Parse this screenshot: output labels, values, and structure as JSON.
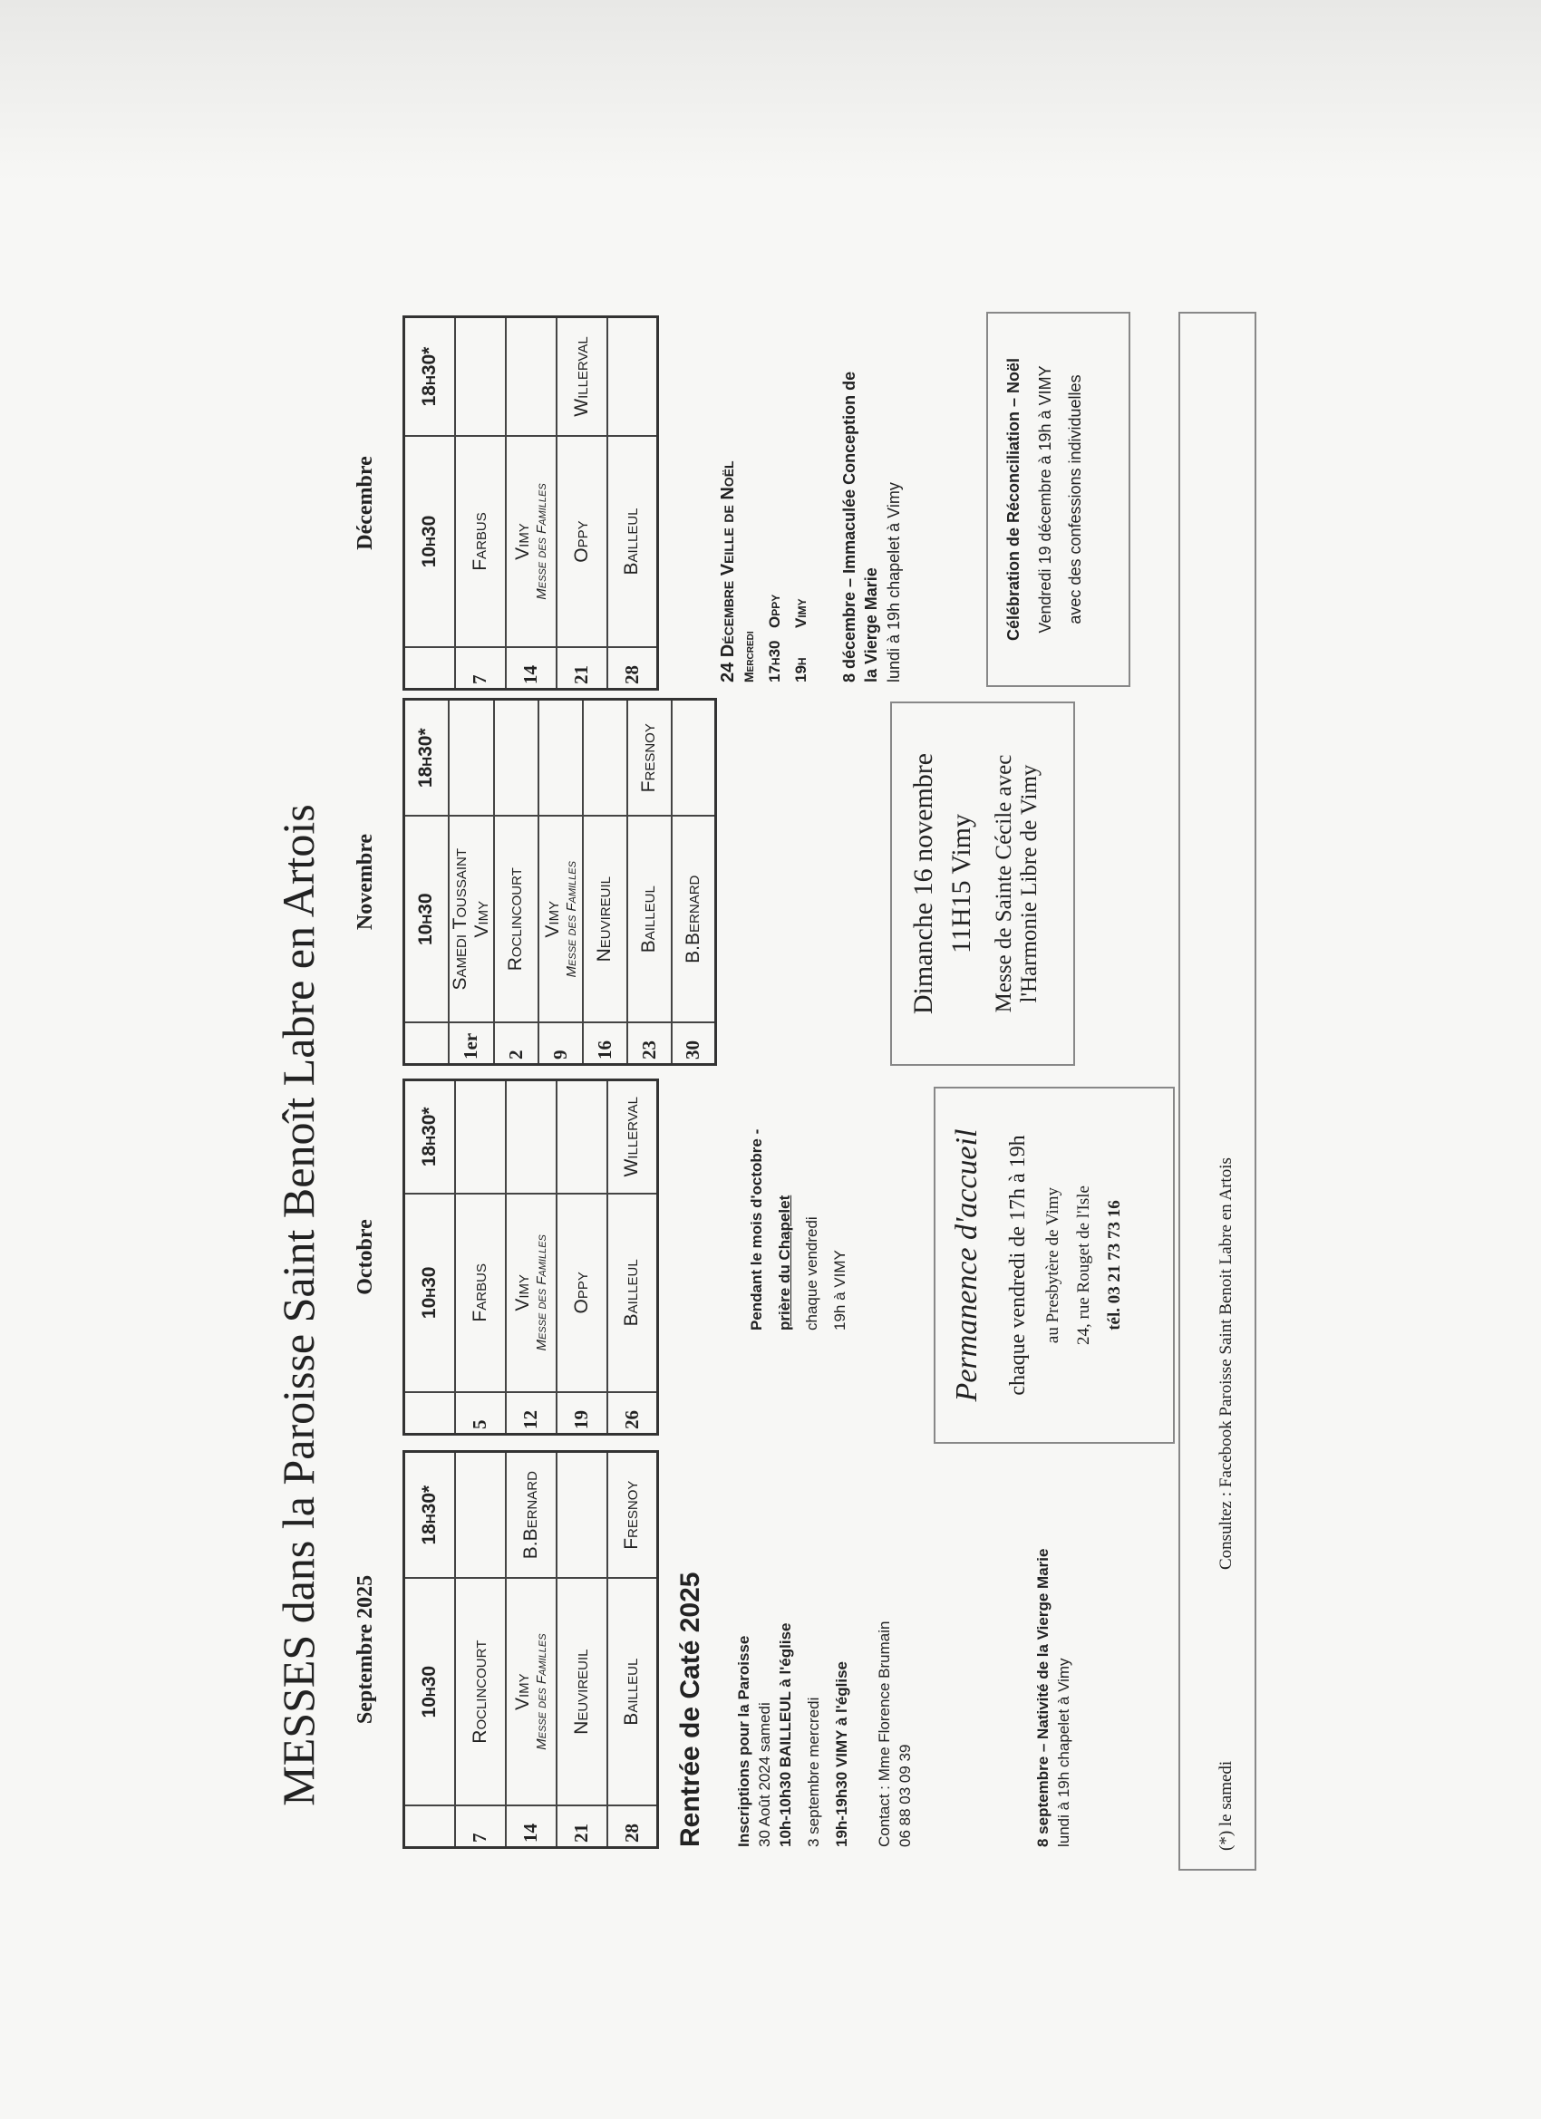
{
  "title": "MESSES dans la Paroisse Saint Benoît Labre en Artois",
  "months": [
    {
      "label": "Septembre  2025",
      "headers": [
        "",
        "10h30",
        "18h30*"
      ],
      "rows": [
        {
          "day": "7",
          "c1": "Roclincourt",
          "c1_sub": "",
          "c2": ""
        },
        {
          "day": "14",
          "c1": "Vimy",
          "c1_sub": "Messe des Familles",
          "c2": "B.Bernard"
        },
        {
          "day": "21",
          "c1": "Neuvireuil",
          "c1_sub": "",
          "c2": ""
        },
        {
          "day": "28",
          "c1": "Bailleul",
          "c1_sub": "",
          "c2": "Fresnoy"
        }
      ]
    },
    {
      "label": "Octobre",
      "headers": [
        "",
        "10h30",
        "18h30*"
      ],
      "rows": [
        {
          "day": "5",
          "c1": "Farbus",
          "c1_sub": "",
          "c2": ""
        },
        {
          "day": "12",
          "c1": "Vimy",
          "c1_sub": "Messe des Familles",
          "c2": ""
        },
        {
          "day": "19",
          "c1": "Oppy",
          "c1_sub": "",
          "c2": ""
        },
        {
          "day": "26",
          "c1": "Bailleul",
          "c1_sub": "",
          "c2": "Willerval"
        }
      ]
    },
    {
      "label": "Novembre",
      "headers": [
        "",
        "10h30",
        "18h30*"
      ],
      "rows": [
        {
          "day": "1er",
          "c1": "Samedi Toussaint",
          "c1_sub": "Vimy",
          "c2": ""
        },
        {
          "day": "2",
          "c1": "Roclincourt",
          "c1_sub": "",
          "c2": ""
        },
        {
          "day": "9",
          "c1": "Vimy",
          "c1_sub": "Messe des Familles",
          "c2": ""
        },
        {
          "day": "16",
          "c1": "Neuvireuil",
          "c1_sub": "",
          "c2": ""
        },
        {
          "day": "23",
          "c1": "Bailleul",
          "c1_sub": "",
          "c2": "Fresnoy"
        },
        {
          "day": "30",
          "c1": "B.Bernard",
          "c1_sub": "",
          "c2": ""
        }
      ]
    },
    {
      "label": "Décembre",
      "headers": [
        "",
        "10h30",
        "18h30*"
      ],
      "rows": [
        {
          "day": "7",
          "c1": "Farbus",
          "c1_sub": "",
          "c2": ""
        },
        {
          "day": "14",
          "c1": "Vimy",
          "c1_sub": "Messe des Familles",
          "c2": ""
        },
        {
          "day": "21",
          "c1": "Oppy",
          "c1_sub": "",
          "c2": "Willerval"
        },
        {
          "day": "28",
          "c1": "Bailleul",
          "c1_sub": "",
          "c2": ""
        }
      ]
    }
  ],
  "cate": {
    "title": "Rentrée de Caté 2025",
    "lines": [
      "Inscriptions pour la Paroisse",
      "30 Août 2024    samedi",
      "10h-10h30  BAILLEUL à l'église",
      "3 septembre   mercredi",
      "19h-19h30  VIMY à l'église"
    ],
    "contact": [
      "Contact : Mme Florence Brumain",
      "06 88 03 09 39"
    ]
  },
  "nativite": [
    "8 septembre – Nativité de la Vierge Marie",
    "lundi  à 19h chapelet à Vimy"
  ],
  "chapelet": [
    "Pendant le mois d'octobre -",
    "prière du Chapelet",
    "chaque vendredi",
    "19h à VIMY"
  ],
  "permanence": {
    "title": "Permanence d'accueil",
    "lines": [
      "chaque vendredi de 17h à 19h",
      "au Presbytère de Vimy",
      "24, rue Rouget de l'Isle",
      "tél. 03 21 73 73 16"
    ]
  },
  "sainte_cecile": {
    "lines": [
      "Dimanche 16 novembre",
      "11H15 Vimy",
      "Messe de Sainte Cécile avec",
      "l'Harmonie Libre de Vimy"
    ]
  },
  "noel": {
    "title": "24 Décembre Veille de Noël",
    "sub": "Mercredi",
    "lines": [
      [
        "17h30",
        "Oppy"
      ],
      [
        "19h",
        "Vimy"
      ]
    ]
  },
  "immaculee": [
    "8 décembre – Immaculée Conception de",
    "la Vierge Marie",
    "lundi  à 19h chapelet à Vimy"
  ],
  "reconciliation": {
    "title": "Célébration de Réconciliation – Noël",
    "lines": [
      "Vendredi 19 décembre à 19h à VIMY",
      "avec des confessions individuelles"
    ]
  },
  "footer": {
    "note": "(*) le samedi",
    "consult": "Consultez  : Facebook Paroisse Saint Benoit Labre en Artois"
  }
}
